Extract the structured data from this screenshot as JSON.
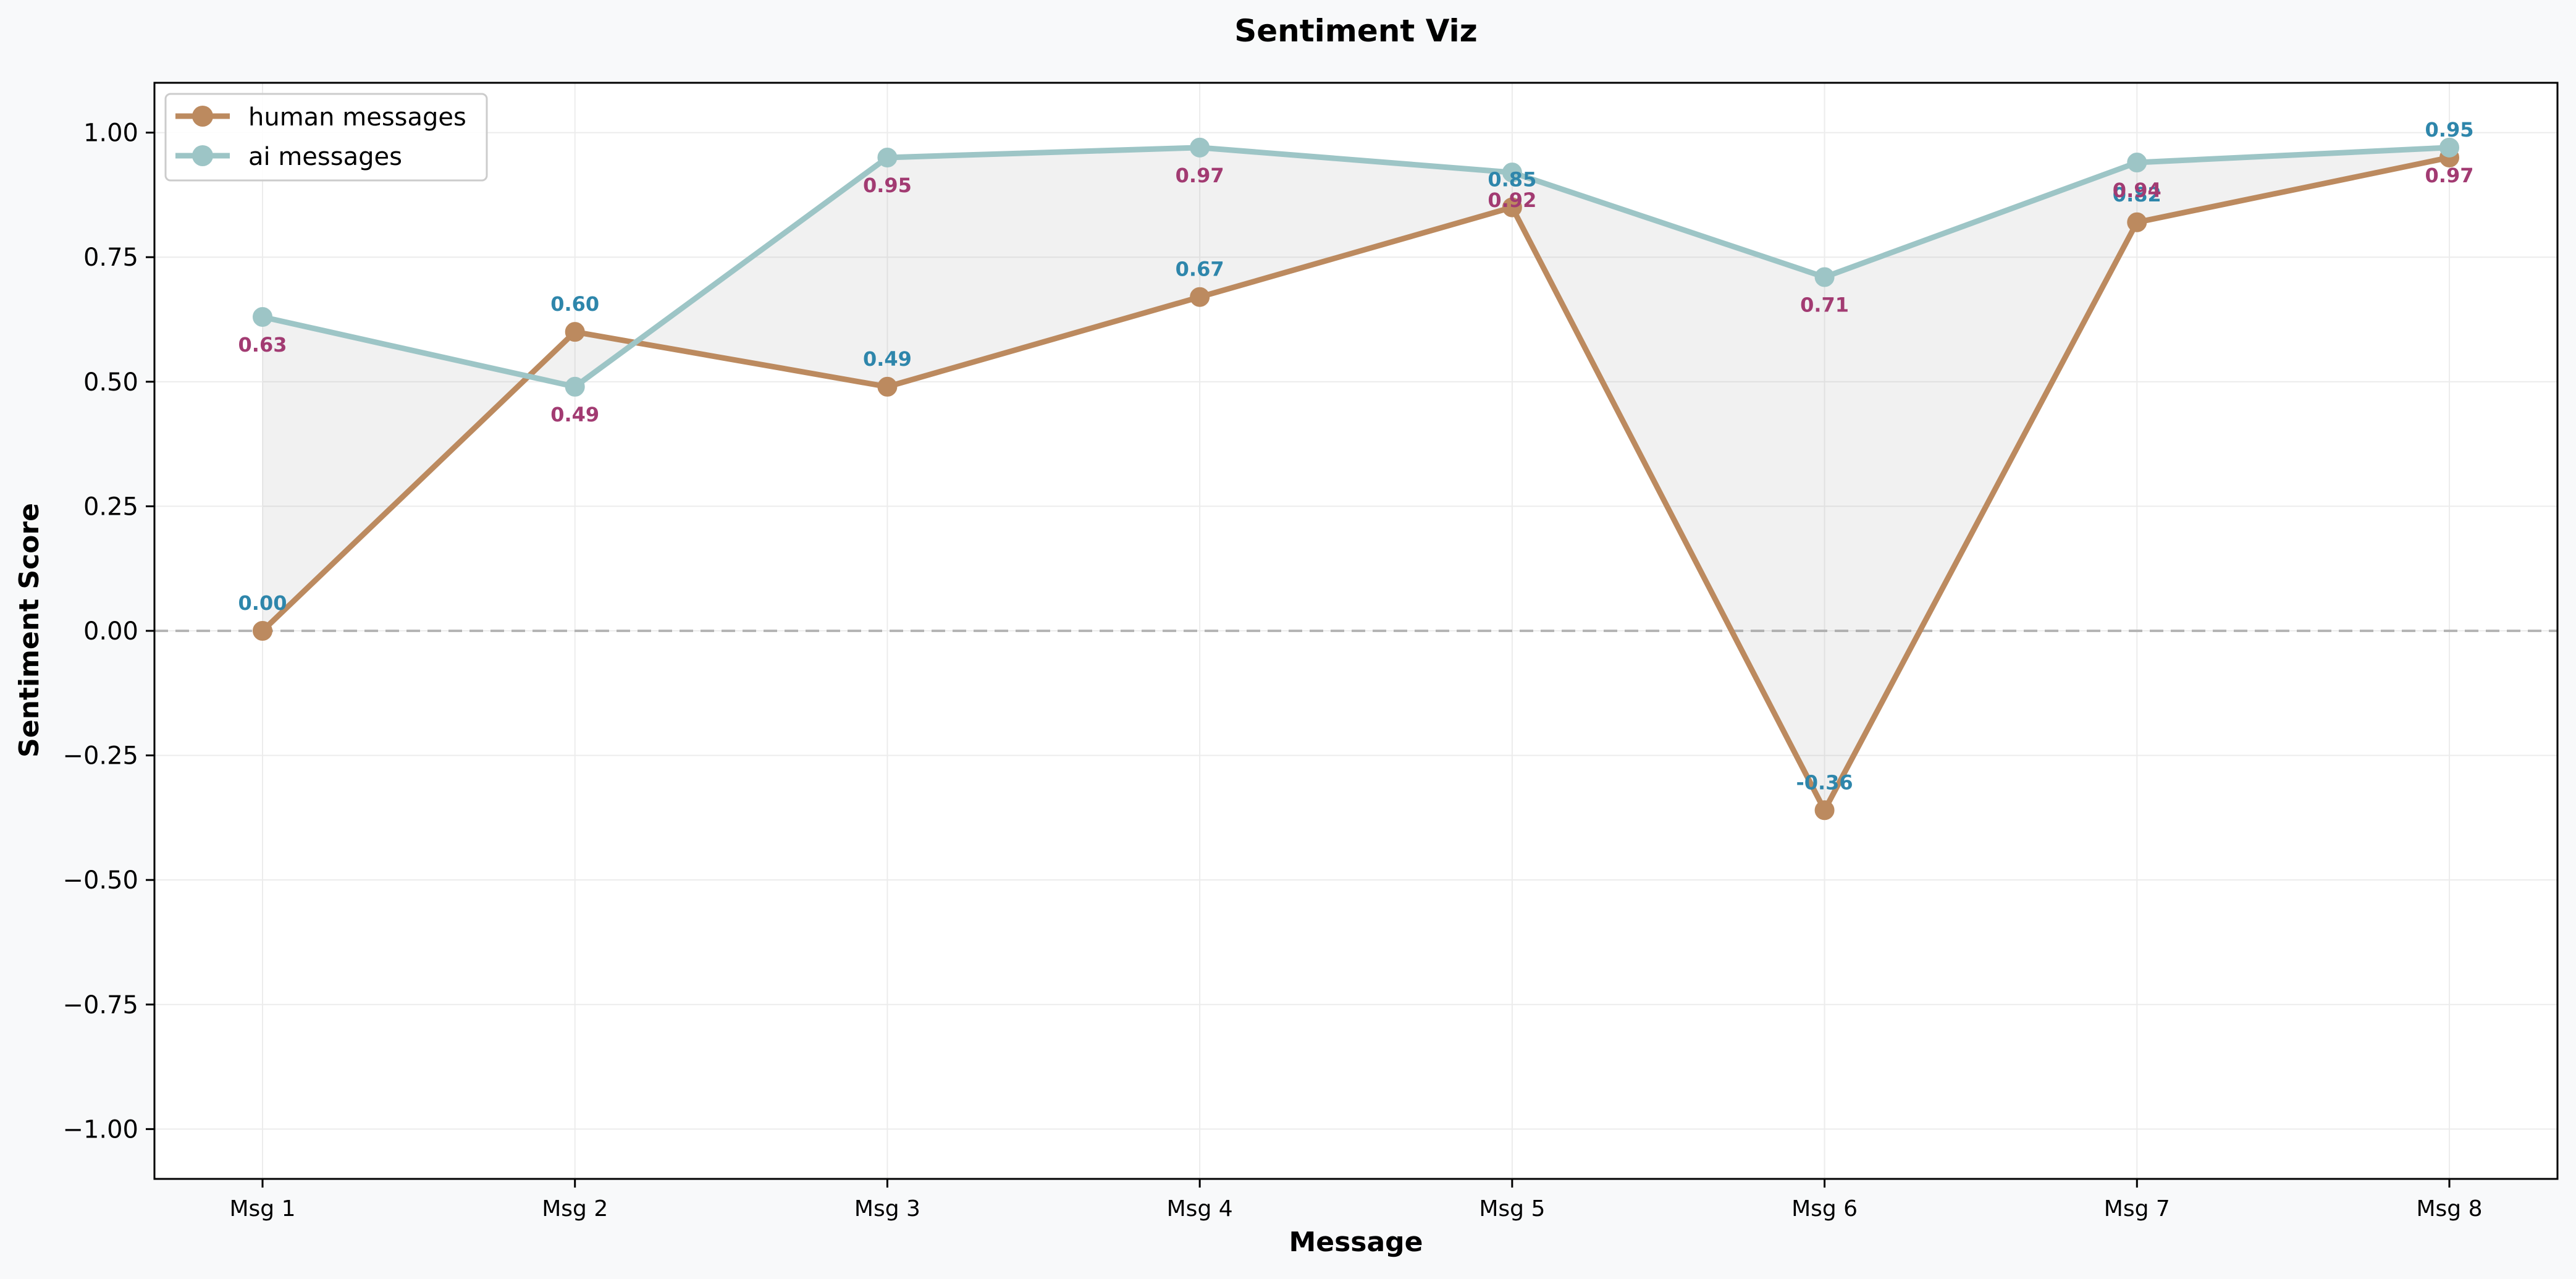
{
  "chart_data": {
    "type": "line",
    "title": "Sentiment Viz",
    "xlabel": "Message",
    "ylabel": "Sentiment Score",
    "categories": [
      "Msg 1",
      "Msg 2",
      "Msg 3",
      "Msg 4",
      "Msg 5",
      "Msg 6",
      "Msg 7",
      "Msg 8"
    ],
    "ylim": [
      -1.1,
      1.1
    ],
    "yticks": [
      -1.0,
      -0.75,
      -0.5,
      -0.25,
      0.0,
      0.25,
      0.5,
      0.75,
      1.0
    ],
    "ytick_labels": [
      "−1.00",
      "−0.75",
      "−0.50",
      "−0.25",
      "0.00",
      "0.25",
      "0.50",
      "0.75",
      "1.00"
    ],
    "grid": true,
    "zero_reference_line": true,
    "fill_between_series": true,
    "legend": "top-left",
    "series": [
      {
        "name": "human messages",
        "color": "#bc8a5f",
        "values": [
          0.0,
          0.6,
          0.49,
          0.67,
          0.85,
          -0.36,
          0.82,
          0.95
        ],
        "labels": [
          "0.00",
          "0.60",
          "0.49",
          "0.67",
          "0.85",
          "-0.36",
          "0.82",
          "0.95"
        ],
        "label_color": "#2e86ab",
        "label_position": "above"
      },
      {
        "name": "ai messages",
        "color": "#9dc5c6",
        "values": [
          0.63,
          0.49,
          0.95,
          0.97,
          0.92,
          0.71,
          0.94,
          0.97
        ],
        "labels": [
          "0.63",
          "0.49",
          "0.95",
          "0.97",
          "0.92",
          "0.71",
          "0.94",
          "0.97"
        ],
        "label_color": "#a23b72",
        "label_position": "below"
      }
    ]
  }
}
